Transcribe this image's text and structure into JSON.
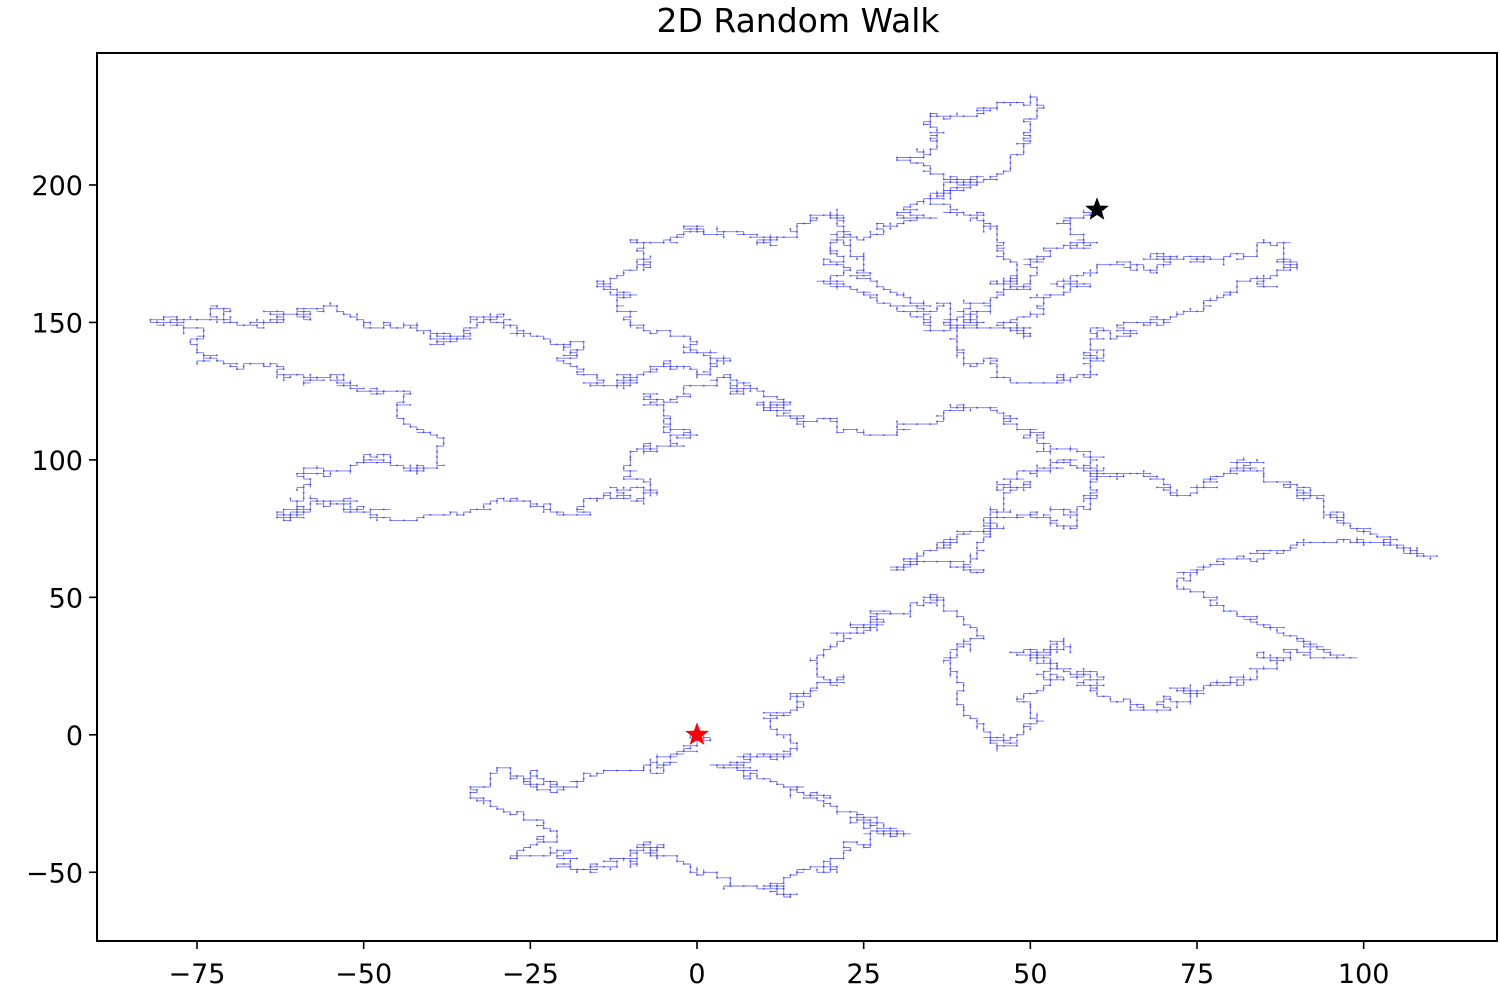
{
  "chart_data": {
    "type": "line",
    "title": "2D Random Walk",
    "xlabel": "",
    "ylabel": "",
    "xlim": [
      -90,
      120
    ],
    "ylim": [
      -75,
      248
    ],
    "xticks": [
      -75,
      -50,
      -25,
      0,
      25,
      50,
      75,
      100
    ],
    "yticks": [
      -50,
      0,
      50,
      100,
      150,
      200
    ],
    "grid": false,
    "legend": "none",
    "series": [
      {
        "line_color": "#0000ff",
        "marker": "dot",
        "step_size": 1,
        "waypoints": [
          {
            "x": 0,
            "y": 0
          },
          {
            "x": -8,
            "y": -12
          },
          {
            "x": -20,
            "y": -20
          },
          {
            "x": -30,
            "y": -12
          },
          {
            "x": -22,
            "y": -35
          },
          {
            "x": -28,
            "y": -45
          },
          {
            "x": -18,
            "y": -50
          },
          {
            "x": -5,
            "y": -40
          },
          {
            "x": 5,
            "y": -55
          },
          {
            "x": 15,
            "y": -58
          },
          {
            "x": 25,
            "y": -40
          },
          {
            "x": 30,
            "y": -35
          },
          {
            "x": 15,
            "y": -20
          },
          {
            "x": 5,
            "y": -10
          },
          {
            "x": 15,
            "y": -5
          },
          {
            "x": 15,
            "y": 10
          },
          {
            "x": 20,
            "y": 20
          },
          {
            "x": 25,
            "y": 40
          },
          {
            "x": 35,
            "y": 50
          },
          {
            "x": 40,
            "y": 10
          },
          {
            "x": 45,
            "y": -5
          },
          {
            "x": 50,
            "y": 10
          },
          {
            "x": 55,
            "y": 35
          },
          {
            "x": 60,
            "y": 20
          },
          {
            "x": 65,
            "y": 10
          },
          {
            "x": 75,
            "y": 15
          },
          {
            "x": 90,
            "y": 30
          },
          {
            "x": 95,
            "y": 30
          },
          {
            "x": 80,
            "y": 45
          },
          {
            "x": 75,
            "y": 60
          },
          {
            "x": 90,
            "y": 70
          },
          {
            "x": 100,
            "y": 70
          },
          {
            "x": 108,
            "y": 65
          },
          {
            "x": 95,
            "y": 80
          },
          {
            "x": 85,
            "y": 95
          },
          {
            "x": 75,
            "y": 90
          },
          {
            "x": 65,
            "y": 95
          },
          {
            "x": 55,
            "y": 100
          },
          {
            "x": 45,
            "y": 90
          },
          {
            "x": 40,
            "y": 60
          },
          {
            "x": 30,
            "y": 60
          },
          {
            "x": 38,
            "y": 70
          },
          {
            "x": 48,
            "y": 80
          },
          {
            "x": 55,
            "y": 75
          },
          {
            "x": 60,
            "y": 95
          },
          {
            "x": 50,
            "y": 110
          },
          {
            "x": 40,
            "y": 120
          },
          {
            "x": 30,
            "y": 110
          },
          {
            "x": 20,
            "y": 115
          },
          {
            "x": 10,
            "y": 120
          },
          {
            "x": 5,
            "y": 130
          },
          {
            "x": -5,
            "y": 120
          },
          {
            "x": -10,
            "y": 100
          },
          {
            "x": -8,
            "y": 90
          },
          {
            "x": -15,
            "y": 85
          },
          {
            "x": -25,
            "y": 85
          },
          {
            "x": -35,
            "y": 80
          },
          {
            "x": -48,
            "y": 80
          },
          {
            "x": -55,
            "y": 85
          },
          {
            "x": -62,
            "y": 78
          },
          {
            "x": -60,
            "y": 95
          },
          {
            "x": -50,
            "y": 100
          },
          {
            "x": -42,
            "y": 95
          },
          {
            "x": -40,
            "y": 110
          },
          {
            "x": -45,
            "y": 125
          },
          {
            "x": -55,
            "y": 130
          },
          {
            "x": -65,
            "y": 135
          },
          {
            "x": -75,
            "y": 140
          },
          {
            "x": -80,
            "y": 152
          },
          {
            "x": -70,
            "y": 150
          },
          {
            "x": -60,
            "y": 155
          },
          {
            "x": -50,
            "y": 150
          },
          {
            "x": -40,
            "y": 145
          },
          {
            "x": -30,
            "y": 150
          },
          {
            "x": -20,
            "y": 140
          },
          {
            "x": -15,
            "y": 130
          },
          {
            "x": -5,
            "y": 135
          },
          {
            "x": 0,
            "y": 130
          },
          {
            "x": -10,
            "y": 150
          },
          {
            "x": -15,
            "y": 165
          },
          {
            "x": -10,
            "y": 180
          },
          {
            "x": 0,
            "y": 185
          },
          {
            "x": 10,
            "y": 180
          },
          {
            "x": 20,
            "y": 190
          },
          {
            "x": 25,
            "y": 175
          },
          {
            "x": 30,
            "y": 160
          },
          {
            "x": 40,
            "y": 150
          },
          {
            "x": 45,
            "y": 165
          },
          {
            "x": 45,
            "y": 185
          },
          {
            "x": 35,
            "y": 195
          },
          {
            "x": 30,
            "y": 210
          },
          {
            "x": 35,
            "y": 225
          },
          {
            "x": 45,
            "y": 230
          },
          {
            "x": 48,
            "y": 215
          },
          {
            "x": 42,
            "y": 200
          },
          {
            "x": 30,
            "y": 190
          },
          {
            "x": 20,
            "y": 175
          },
          {
            "x": 25,
            "y": 160
          },
          {
            "x": 35,
            "y": 150
          },
          {
            "x": 50,
            "y": 145
          },
          {
            "x": 55,
            "y": 160
          },
          {
            "x": 60,
            "y": 170
          },
          {
            "x": 70,
            "y": 175
          },
          {
            "x": 85,
            "y": 180
          },
          {
            "x": 90,
            "y": 170
          },
          {
            "x": 80,
            "y": 160
          },
          {
            "x": 70,
            "y": 150
          },
          {
            "x": 60,
            "y": 145
          },
          {
            "x": 55,
            "y": 130
          },
          {
            "x": 45,
            "y": 130
          },
          {
            "x": 40,
            "y": 140
          },
          {
            "x": 50,
            "y": 165
          },
          {
            "x": 58,
            "y": 180
          },
          {
            "x": 60,
            "y": 191
          }
        ]
      }
    ],
    "markers": [
      {
        "x": 0,
        "y": 0,
        "shape": "star",
        "color": "#ff0000"
      },
      {
        "x": 60,
        "y": 191,
        "shape": "star",
        "color": "#000000"
      }
    ]
  }
}
